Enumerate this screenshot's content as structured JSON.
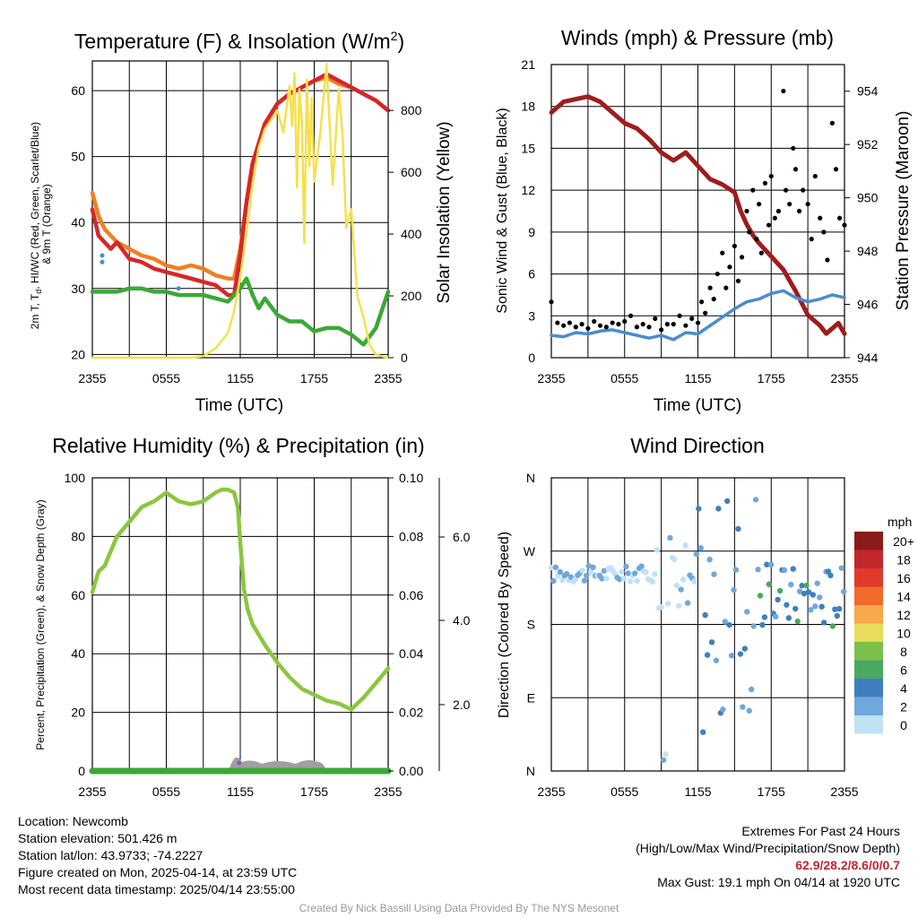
{
  "time_ticks": [
    "2355",
    "0555",
    "1155",
    "1755",
    "2355"
  ],
  "colors": {
    "temp": "#d62728",
    "heat_index": "#3aa935",
    "dewpoint_line": "#3aa935",
    "temp9m": "#f07f22",
    "insolation": "#f5e04f",
    "wind": "#4a8ccf",
    "gust": "#000000",
    "pressure": "#a01c1c",
    "rh": "#8cc63f",
    "precip": "#3aa935",
    "snow": "#a0a0a0"
  },
  "chart_data": [
    {
      "type": "line",
      "title": "Temperature (F) & Insolation (W/m²)",
      "xlabel": "Time (UTC)",
      "ylabel": "2m T, T_d, HI/WC (Red, Green, Scarlet/Blue) & 9m T (Orange)",
      "ylabel_lines": [
        "2m T, T",
        "d",
        ", HI/WC (Red, Green, Scarlet/Blue)",
        "& 9m T (Orange)"
      ],
      "y2label": "Solar Insolation (Yellow)",
      "x_hours_range": [
        0,
        24
      ],
      "ylim": [
        19.5,
        64.5
      ],
      "y_ticks": [
        "20",
        "30",
        "40",
        "50",
        "60"
      ],
      "y2lim": [
        0,
        960
      ],
      "y2_ticks": [
        "0",
        "200",
        "400",
        "600",
        "800"
      ],
      "series": [
        {
          "key": "temp9m",
          "x": [
            0,
            0.5,
            1,
            2,
            3,
            4,
            5,
            6,
            7,
            8,
            9,
            10,
            11,
            11.5,
            12,
            12.5,
            13,
            14,
            15,
            16,
            17,
            18,
            19,
            20,
            21,
            22,
            23,
            24
          ],
          "values": [
            44.5,
            41,
            39,
            37,
            36,
            35,
            34.5,
            33.5,
            33,
            33.5,
            33,
            32,
            31.5,
            31.5,
            36,
            43,
            49,
            55,
            58,
            59.5,
            60.5,
            61.5,
            62,
            61,
            60.5,
            59.5,
            58.5,
            57
          ]
        },
        {
          "key": "temp",
          "x": [
            0,
            0.5,
            1,
            1.5,
            2,
            3,
            4,
            5,
            6,
            7,
            8,
            9,
            10,
            11,
            11.5,
            12,
            12.5,
            13,
            14,
            15,
            16,
            17,
            18,
            19,
            20,
            21,
            22,
            23,
            24
          ],
          "values": [
            42,
            38,
            37,
            36,
            37,
            34.5,
            34,
            33,
            32.5,
            32,
            31.5,
            31,
            30.5,
            29,
            29,
            35,
            43,
            49,
            55,
            58,
            59.5,
            60.5,
            61.5,
            62.5,
            61.5,
            60.5,
            59.5,
            58.5,
            57
          ]
        },
        {
          "key": "heat_index",
          "x": [
            0,
            1,
            2,
            3,
            4,
            5,
            6,
            7,
            8,
            9,
            10,
            11,
            11.5,
            12,
            12.5,
            13,
            13.5,
            14,
            15,
            16,
            17,
            18,
            19,
            20,
            21,
            22,
            23,
            24
          ],
          "values": [
            29.5,
            29.5,
            29.5,
            30,
            30,
            29.5,
            29.5,
            29,
            29,
            29,
            28.5,
            28,
            29,
            30,
            31.5,
            29,
            27,
            28.5,
            26,
            25,
            25,
            23.5,
            24,
            24,
            23,
            21.5,
            24,
            29.5
          ]
        },
        {
          "key": "insolation",
          "x": [
            0,
            8,
            9,
            10,
            11,
            11.5,
            12,
            12.5,
            13,
            13.5,
            14,
            15,
            15.5,
            16,
            16.2,
            16.4,
            16.6,
            16.8,
            17,
            17.2,
            17.4,
            17.6,
            17.8,
            18,
            18.5,
            19,
            19.5,
            20,
            20.3,
            20.6,
            21,
            21.5,
            22,
            22.5,
            23,
            24
          ],
          "values": [
            0,
            0,
            5,
            30,
            80,
            150,
            260,
            400,
            560,
            680,
            740,
            800,
            730,
            880,
            750,
            920,
            550,
            870,
            760,
            370,
            900,
            620,
            840,
            570,
            730,
            950,
            560,
            870,
            720,
            420,
            480,
            200,
            130,
            40,
            10,
            0
          ]
        }
      ],
      "points": [
        {
          "key": "wind",
          "x": 0.8,
          "y": 35
        },
        {
          "key": "wind",
          "x": 0.8,
          "y": 34
        },
        {
          "key": "wind",
          "x": 7.0,
          "y": 30
        }
      ]
    },
    {
      "type": "line",
      "title": "Winds (mph) & Pressure (mb)",
      "xlabel": "Time (UTC)",
      "ylabel": "Sonic Wind & Gust (Blue, Black)",
      "y2label": "Station Pressure (Maroon)",
      "x_hours_range": [
        0,
        24
      ],
      "ylim": [
        0,
        21
      ],
      "y_ticks": [
        "0",
        "3",
        "6",
        "9",
        "12",
        "15",
        "18",
        "21"
      ],
      "y2lim": [
        944,
        955
      ],
      "y2_ticks": [
        "944",
        "946",
        "948",
        "950",
        "952",
        "954"
      ],
      "series": [
        {
          "key": "pressure",
          "x": [
            0,
            1,
            2,
            3,
            4,
            5,
            6,
            7,
            8,
            9,
            10,
            11,
            12,
            13,
            14,
            15,
            15.5,
            16,
            16.5,
            17,
            18,
            19,
            20,
            21,
            22,
            22.5,
            23,
            23.5,
            24
          ],
          "values": [
            953.2,
            953.6,
            953.7,
            953.8,
            953.6,
            953.2,
            952.8,
            952.6,
            952.2,
            951.7,
            951.4,
            951.7,
            951.2,
            950.7,
            950.5,
            950.2,
            949.5,
            949,
            948.6,
            948.3,
            947.8,
            947.3,
            946.5,
            945.6,
            945.2,
            944.9,
            945.1,
            945.3,
            944.9
          ]
        },
        {
          "key": "wind",
          "x": [
            0,
            1,
            2,
            3,
            4,
            5,
            6,
            7,
            8,
            9,
            10,
            11,
            12,
            13,
            14,
            15,
            16,
            17,
            18,
            19,
            20,
            21,
            22,
            23,
            24
          ],
          "values": [
            1.6,
            1.5,
            1.8,
            1.7,
            1.9,
            2.0,
            1.8,
            1.6,
            1.4,
            1.6,
            1.3,
            1.8,
            1.7,
            2.3,
            2.9,
            3.5,
            4.0,
            4.2,
            4.6,
            4.8,
            4.3,
            4.0,
            4.2,
            4.5,
            4.3
          ]
        },
        {
          "key": "gust",
          "points_x": [
            0,
            0.5,
            1,
            1.5,
            2,
            2.5,
            3,
            3.5,
            4,
            4.5,
            5,
            5.5,
            6,
            6.5,
            7,
            7.5,
            8,
            8.5,
            9,
            9.5,
            10,
            10.5,
            11,
            11.5,
            12,
            12.3,
            12.6,
            13,
            13.3,
            13.6,
            14,
            14.3,
            14.6,
            15,
            15.3,
            15.6,
            16,
            16.2,
            16.5,
            16.8,
            17,
            17.2,
            17.5,
            17.8,
            18,
            18.3,
            18.6,
            19,
            19.2,
            19.5,
            19.8,
            20,
            20.3,
            20.6,
            21,
            21.3,
            21.6,
            22,
            22.3,
            22.6,
            23,
            23.3,
            23.6,
            24
          ],
          "points_y": [
            4,
            2.5,
            2.3,
            2.5,
            2.2,
            2.4,
            2.1,
            2.6,
            2.3,
            2.2,
            2.5,
            2.4,
            2.6,
            3,
            2.2,
            2.4,
            2.2,
            2.8,
            2,
            2.4,
            2.4,
            3,
            2.3,
            2.8,
            2.5,
            4,
            3.2,
            5,
            4.2,
            6,
            7.5,
            5,
            6.5,
            8,
            5.5,
            7.2,
            10.5,
            9,
            12,
            8.5,
            11,
            7.5,
            12.5,
            9.5,
            13,
            10,
            10.5,
            19.1,
            12,
            11,
            15,
            13.5,
            10.5,
            12,
            11,
            8.5,
            13,
            10,
            9,
            7,
            16.8,
            13.5,
            10,
            9.5
          ]
        }
      ]
    },
    {
      "type": "line",
      "title": "Relative Humidity (%) & Precipitation (in)",
      "ylabel": "Percent, Precipitation (Green), & Snow Depth (Gray)",
      "x_hours_range": [
        0,
        24
      ],
      "ylim": [
        0,
        100
      ],
      "y_ticks": [
        "0",
        "20",
        "40",
        "60",
        "80",
        "100"
      ],
      "y2lim": [
        0,
        0.1
      ],
      "y2_ticks": [
        "0.00",
        "0.02",
        "0.04",
        "0.06",
        "0.08",
        "0.10"
      ],
      "y3_ticks": [
        "2.0",
        "4.0",
        "6.0"
      ],
      "series": [
        {
          "key": "rh",
          "x": [
            0,
            0.5,
            1,
            1.5,
            2,
            3,
            4,
            5,
            6,
            7,
            8,
            9,
            10,
            10.5,
            11,
            11.5,
            11.8,
            12,
            12.3,
            12.6,
            13,
            14,
            15,
            16,
            17,
            18,
            19,
            20,
            21,
            22,
            23,
            24
          ],
          "values": [
            61,
            68,
            70,
            75,
            80,
            85,
            90,
            92,
            95,
            92,
            91,
            92,
            95,
            96,
            96,
            95,
            90,
            78,
            62,
            55,
            50,
            43,
            37,
            32,
            28,
            26,
            24,
            23,
            21,
            25,
            30,
            35
          ]
        },
        {
          "key": "precip",
          "x": [
            0,
            24
          ],
          "values": [
            0.0,
            0.0
          ]
        }
      ]
    },
    {
      "type": "scatter",
      "title": "Wind Direction",
      "ylabel": "Direction (Colored By Speed)",
      "x_hours_range": [
        0,
        24
      ],
      "y_ticks": [
        "N",
        "E",
        "S",
        "W",
        "N"
      ],
      "legend_title": "mph",
      "legend_labels": [
        "20+",
        "18",
        "16",
        "14",
        "12",
        "10",
        "8",
        "6",
        "4",
        "2",
        "0"
      ],
      "legend_colors": [
        "#8b1a1a",
        "#c1272d",
        "#e03a2b",
        "#f06a2b",
        "#f7a84a",
        "#e8dc5a",
        "#7bc048",
        "#4aa860",
        "#3f7fbf",
        "#6fa8dc",
        "#bfe2f7"
      ]
    }
  ],
  "info": {
    "location": "Location: Newcomb",
    "elevation": "Station elevation: 501.426 m",
    "latlon": "Station lat/lon: 43.9733; -74.2227",
    "created": "Figure created on Mon, 2025-04-14, at 23:59 UTC",
    "recent": "Most recent data timestamp: 2025/04/14 23:55:00"
  },
  "extremes": {
    "title": "Extremes For Past 24 Hours",
    "subtitle": "(High/Low/Max Wind/Precipitation/Snow Depth)",
    "values": "62.9/28.2/8.6/0/0.7",
    "max_gust": "Max Gust: 19.1 mph On 04/14 at 1920 UTC"
  },
  "credit": "Created By Nick Bassill Using Data Provided By The NYS Mesonet"
}
